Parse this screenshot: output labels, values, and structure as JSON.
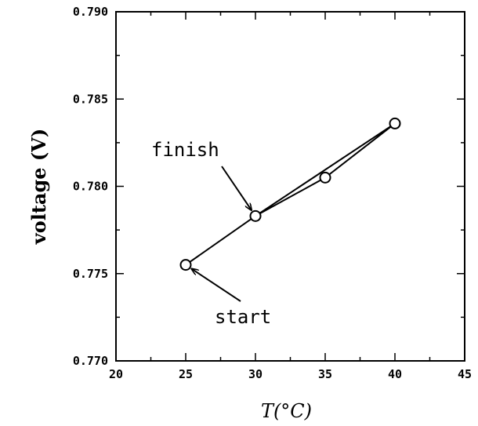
{
  "chart_data": {
    "type": "line",
    "xlabel": "T(°C)",
    "ylabel": "voltage (V)",
    "xlim": [
      20,
      45
    ],
    "ylim": [
      0.77,
      0.79
    ],
    "x_ticks": [
      "20",
      "25",
      "30",
      "35",
      "40",
      "45"
    ],
    "y_ticks": [
      "0.770",
      "0.775",
      "0.780",
      "0.785",
      "0.790"
    ],
    "grid": false,
    "legend": "none",
    "series": [
      {
        "x": [
          25,
          30,
          35,
          40,
          30
        ],
        "y": [
          0.7755,
          0.7783,
          0.7805,
          0.7836,
          0.7783
        ],
        "marker": "open-circle"
      }
    ],
    "annotations": [
      {
        "text": "finish",
        "arrow_to": [
          30,
          0.7783
        ]
      },
      {
        "text": "start",
        "arrow_to": [
          25,
          0.7755
        ]
      }
    ]
  }
}
